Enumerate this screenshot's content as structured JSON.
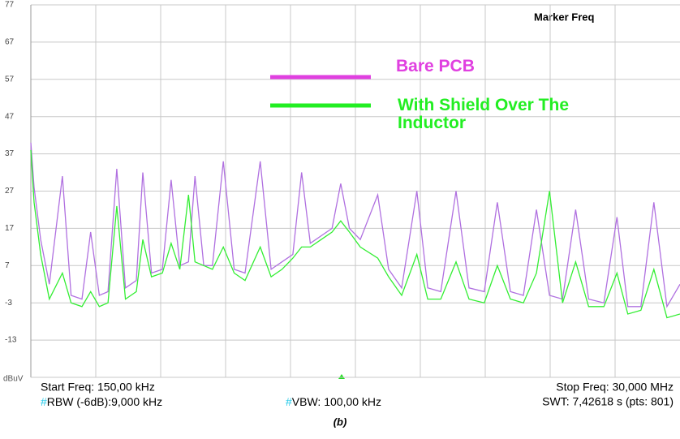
{
  "chart_data": {
    "type": "line",
    "y_unit": "dBuV",
    "marker_label": "Marker Freq",
    "start_freq": "Start Freq: 150,00 kHz",
    "stop_freq": "Stop Freq: 30,000 MHz",
    "rbw": {
      "mark": "#",
      "text": "RBW (-6dB):9,000 kHz"
    },
    "vbw": {
      "mark": "#",
      "text": "VBW: 100,00 kHz"
    },
    "swt": "SWT: 7,42618 s (pts: 801)",
    "caption": "(b)",
    "xlim": [
      0.15,
      30
    ],
    "ylim": [
      -23,
      77
    ],
    "yticks": [
      -13,
      -3,
      7,
      17,
      27,
      37,
      47,
      57,
      67,
      77
    ],
    "grid": true,
    "x": [
      0.15,
      0.3,
      0.6,
      1.0,
      1.6,
      2.0,
      2.5,
      2.9,
      3.3,
      3.7,
      4.1,
      4.5,
      5.0,
      5.3,
      5.7,
      6.2,
      6.6,
      7.0,
      7.4,
      7.7,
      8.1,
      8.5,
      9.0,
      9.5,
      10.0,
      10.7,
      11.2,
      11.7,
      12.2,
      12.6,
      13.0,
      13.5,
      14.0,
      14.4,
      14.8,
      15.3,
      16.1,
      16.6,
      17.2,
      17.9,
      18.4,
      19.0,
      19.7,
      20.3,
      21.0,
      21.6,
      22.2,
      22.8,
      23.4,
      24.0,
      24.6,
      25.2,
      25.8,
      26.5,
      27.1,
      27.6,
      28.2,
      28.8,
      29.4,
      30.0
    ],
    "series": [
      {
        "name": "Bare PCB",
        "color": "#b070e0",
        "legend_color": "#e040e0",
        "values": [
          40,
          28,
          14,
          2,
          31,
          -1,
          -2,
          16,
          -1,
          0,
          33,
          1,
          3,
          32,
          5,
          6,
          30,
          7,
          8,
          31,
          7,
          7,
          35,
          6,
          5,
          35,
          6,
          8,
          10,
          32,
          13,
          15,
          17,
          29,
          17,
          14,
          26,
          6,
          1,
          27,
          1,
          0,
          27,
          1,
          0,
          24,
          0,
          -1,
          22,
          -1,
          -2,
          22,
          -2,
          -3,
          20,
          -4,
          -4,
          24,
          -4,
          2
        ]
      },
      {
        "name": "With Shield Over The Inductor",
        "color": "#33ee33",
        "legend_color": "#22ee22",
        "values": [
          38,
          24,
          10,
          -2,
          5,
          -3,
          -4,
          0,
          -4,
          -3,
          23,
          -2,
          0,
          14,
          4,
          5,
          13,
          6,
          26,
          8,
          7,
          6,
          12,
          5,
          3,
          12,
          4,
          6,
          9,
          12,
          12,
          14,
          16,
          19,
          16,
          12,
          9,
          4,
          -1,
          10,
          -2,
          -2,
          8,
          -2,
          -3,
          7,
          -2,
          -3,
          5,
          27,
          -3,
          8,
          -4,
          -4,
          5,
          -6,
          -5,
          6,
          -7,
          -6
        ]
      }
    ]
  }
}
